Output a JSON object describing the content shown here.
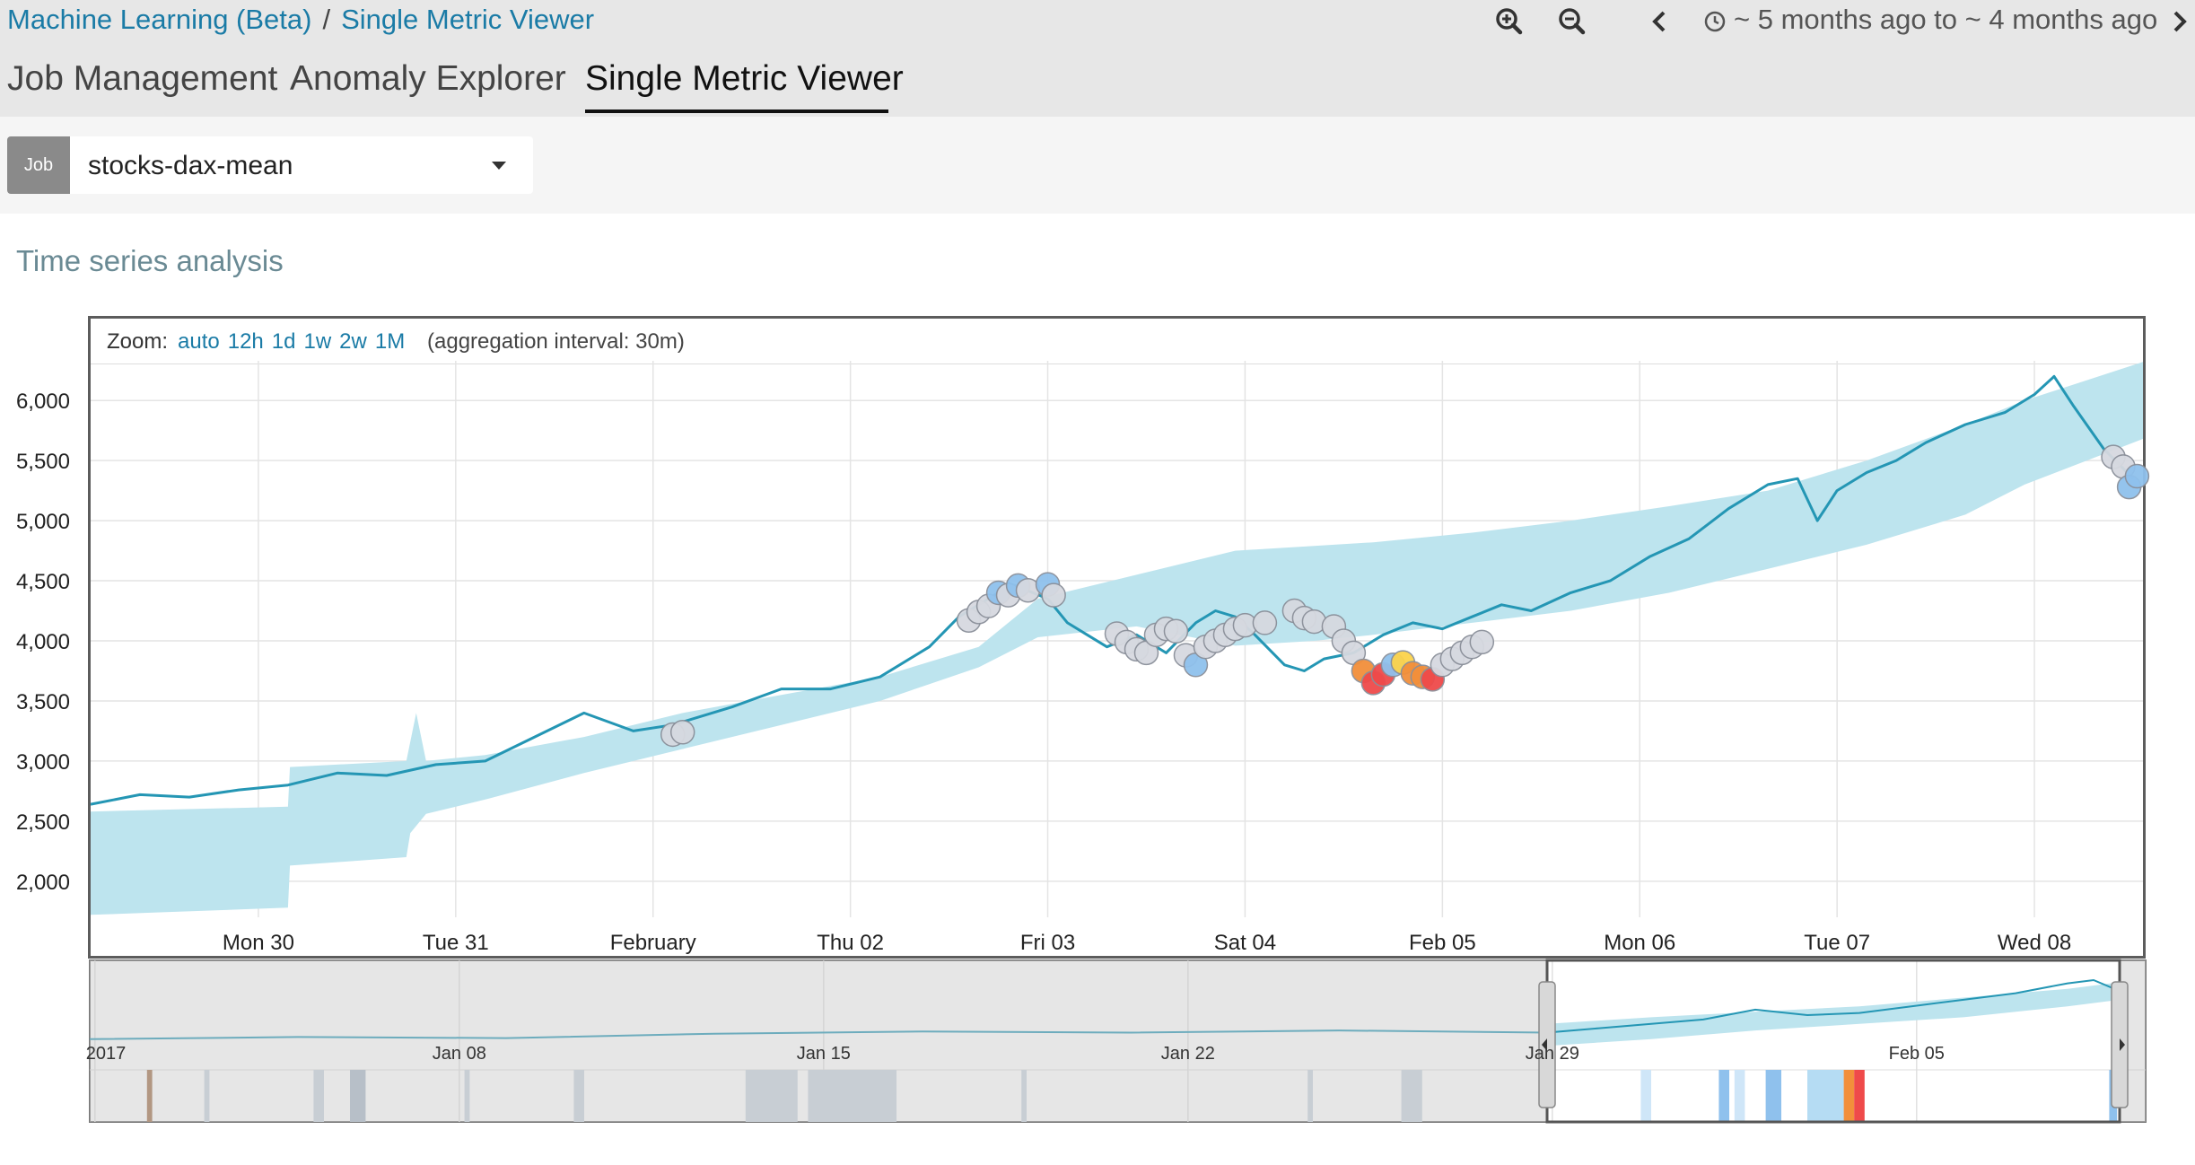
{
  "breadcrumbs": {
    "items": [
      "Machine Learning (Beta)",
      "Single Metric Viewer"
    ],
    "separator": "/"
  },
  "toolbar": {
    "zoom_in_icon": "zoom-in-icon",
    "zoom_out_icon": "zoom-out-icon",
    "prev_icon": "chevron-left-icon",
    "clock_icon": "clock-icon",
    "next_icon": "chevron-right-icon",
    "time_range": "~ 5 months ago to ~ 4 months ago"
  },
  "tabs": [
    {
      "label": "Job Management",
      "active": false
    },
    {
      "label": "Anomaly Explorer",
      "active": false
    },
    {
      "label": "Single Metric Viewer",
      "active": true
    }
  ],
  "job": {
    "label": "Job",
    "selected": "stocks-dax-mean"
  },
  "section_title": "Time series analysis",
  "zoom": {
    "label": "Zoom:",
    "options": [
      "auto",
      "12h",
      "1d",
      "1w",
      "2w",
      "1M"
    ],
    "aggregation": "(aggregation interval: 30m)"
  },
  "colors": {
    "line": "#2496b4",
    "bounds": "#bde4ee",
    "anomaly_low": "#d6d9e0",
    "anomaly_warning": "#8fc1ed",
    "anomaly_minor": "#fcd34b",
    "anomaly_major": "#f28f3b",
    "anomaly_critical": "#ef4a4a",
    "link": "#1a7ba6"
  },
  "chart_data": {
    "type": "line",
    "y_ticks": [
      "6,000",
      "5,500",
      "5,000",
      "4,500",
      "4,000",
      "3,500",
      "3,000",
      "2,500",
      "2,000"
    ],
    "y_tick_values": [
      6000,
      5500,
      5000,
      4500,
      4000,
      3500,
      3000,
      2500,
      2000
    ],
    "ylim": [
      1700,
      6330
    ],
    "x_ticks": [
      "Mon 30",
      "Tue 31",
      "February",
      "Thu 02",
      "Fri 03",
      "Sat 04",
      "Feb 05",
      "Mon 06",
      "Tue 07",
      "Wed 08"
    ],
    "x_tick_values": [
      0.85,
      1.85,
      2.85,
      3.85,
      4.85,
      5.85,
      6.85,
      7.85,
      8.85,
      9.85
    ],
    "xlim": [
      0,
      10.4
    ],
    "series": [
      {
        "role": "actual",
        "x": [
          0,
          0.25,
          0.5,
          0.75,
          1.0,
          1.25,
          1.5,
          1.75,
          2.0,
          2.25,
          2.5,
          2.75,
          2.95,
          3.25,
          3.5,
          3.75,
          4.0,
          4.25,
          4.4,
          4.5,
          4.6,
          4.65,
          4.7,
          4.85,
          4.95,
          5.05,
          5.15,
          5.3,
          5.45,
          5.6,
          5.7,
          5.8,
          5.9,
          6.05,
          6.15,
          6.25,
          6.4,
          6.55,
          6.7,
          6.85,
          7.0,
          7.15,
          7.3,
          7.5,
          7.7,
          7.9,
          8.1,
          8.3,
          8.5,
          8.65,
          8.75,
          8.85,
          9.0,
          9.15,
          9.3,
          9.5,
          9.7,
          9.85,
          9.95,
          10.05,
          10.2,
          10.35
        ],
        "y": [
          2640,
          2720,
          2700,
          2760,
          2800,
          2900,
          2880,
          2970,
          3000,
          3200,
          3400,
          3250,
          3300,
          3450,
          3600,
          3600,
          3700,
          3950,
          4200,
          4300,
          4400,
          4480,
          4450,
          4350,
          4150,
          4050,
          3950,
          4050,
          3900,
          4150,
          4250,
          4200,
          4050,
          3800,
          3750,
          3850,
          3900,
          4050,
          4150,
          4100,
          4200,
          4300,
          4250,
          4400,
          4500,
          4700,
          4850,
          5100,
          5300,
          5350,
          5000,
          5250,
          5400,
          5500,
          5650,
          5800,
          5900,
          6050,
          6200,
          5950,
          5600,
          5350
        ]
      },
      {
        "role": "upper_bound",
        "x": [
          0,
          1.0,
          1.01,
          1.6,
          1.65,
          1.7,
          2.0,
          2.5,
          3.0,
          3.5,
          4.0,
          4.5,
          4.8,
          5.3,
          5.8,
          6.2,
          6.5,
          7.0,
          7.5,
          8.0,
          8.5,
          9.0,
          9.5,
          9.8,
          10.4
        ],
        "y": [
          2580,
          2620,
          2950,
          3000,
          3400,
          3000,
          3050,
          3200,
          3400,
          3550,
          3700,
          3950,
          4350,
          4550,
          4750,
          4790,
          4820,
          4900,
          5000,
          5120,
          5250,
          5500,
          5800,
          6000,
          6320
        ]
      },
      {
        "role": "lower_bound",
        "x": [
          0,
          1.0,
          1.01,
          1.6,
          1.62,
          1.7,
          2.0,
          2.5,
          3.0,
          3.5,
          4.0,
          4.5,
          4.8,
          5.3,
          5.8,
          6.2,
          6.5,
          7.0,
          7.5,
          8.0,
          8.5,
          9.0,
          9.5,
          9.8,
          10.4
        ],
        "y": [
          1720,
          1780,
          2130,
          2200,
          2400,
          2560,
          2680,
          2900,
          3100,
          3300,
          3500,
          3780,
          4030,
          4120,
          3960,
          4000,
          4050,
          4150,
          4250,
          4400,
          4600,
          4800,
          5050,
          5300,
          5680
        ]
      }
    ],
    "anomalies": [
      {
        "x": 2.95,
        "y": 3220,
        "severity": "low"
      },
      {
        "x": 3.0,
        "y": 3240,
        "severity": "low"
      },
      {
        "x": 4.45,
        "y": 4170,
        "severity": "low"
      },
      {
        "x": 4.5,
        "y": 4240,
        "severity": "low"
      },
      {
        "x": 4.55,
        "y": 4290,
        "severity": "low"
      },
      {
        "x": 4.6,
        "y": 4400,
        "severity": "warning"
      },
      {
        "x": 4.65,
        "y": 4380,
        "severity": "low"
      },
      {
        "x": 4.7,
        "y": 4460,
        "severity": "warning"
      },
      {
        "x": 4.75,
        "y": 4420,
        "severity": "low"
      },
      {
        "x": 4.85,
        "y": 4470,
        "severity": "warning"
      },
      {
        "x": 4.88,
        "y": 4380,
        "severity": "low"
      },
      {
        "x": 5.2,
        "y": 4060,
        "severity": "low"
      },
      {
        "x": 5.25,
        "y": 3990,
        "severity": "low"
      },
      {
        "x": 5.3,
        "y": 3930,
        "severity": "low"
      },
      {
        "x": 5.35,
        "y": 3900,
        "severity": "low"
      },
      {
        "x": 5.4,
        "y": 4050,
        "severity": "low"
      },
      {
        "x": 5.45,
        "y": 4100,
        "severity": "low"
      },
      {
        "x": 5.5,
        "y": 4080,
        "severity": "low"
      },
      {
        "x": 5.55,
        "y": 3880,
        "severity": "low"
      },
      {
        "x": 5.6,
        "y": 3800,
        "severity": "warning"
      },
      {
        "x": 5.65,
        "y": 3950,
        "severity": "low"
      },
      {
        "x": 5.7,
        "y": 4000,
        "severity": "low"
      },
      {
        "x": 5.75,
        "y": 4050,
        "severity": "low"
      },
      {
        "x": 5.8,
        "y": 4100,
        "severity": "low"
      },
      {
        "x": 5.85,
        "y": 4130,
        "severity": "low"
      },
      {
        "x": 5.95,
        "y": 4150,
        "severity": "low"
      },
      {
        "x": 6.1,
        "y": 4250,
        "severity": "low"
      },
      {
        "x": 6.15,
        "y": 4190,
        "severity": "low"
      },
      {
        "x": 6.2,
        "y": 4160,
        "severity": "low"
      },
      {
        "x": 6.3,
        "y": 4120,
        "severity": "low"
      },
      {
        "x": 6.35,
        "y": 4000,
        "severity": "low"
      },
      {
        "x": 6.4,
        "y": 3900,
        "severity": "low"
      },
      {
        "x": 6.45,
        "y": 3750,
        "severity": "major"
      },
      {
        "x": 6.5,
        "y": 3650,
        "severity": "critical"
      },
      {
        "x": 6.55,
        "y": 3720,
        "severity": "critical"
      },
      {
        "x": 6.6,
        "y": 3800,
        "severity": "warning"
      },
      {
        "x": 6.65,
        "y": 3820,
        "severity": "minor"
      },
      {
        "x": 6.7,
        "y": 3730,
        "severity": "major"
      },
      {
        "x": 6.75,
        "y": 3700,
        "severity": "major"
      },
      {
        "x": 6.8,
        "y": 3680,
        "severity": "critical"
      },
      {
        "x": 6.85,
        "y": 3800,
        "severity": "low"
      },
      {
        "x": 6.9,
        "y": 3850,
        "severity": "low"
      },
      {
        "x": 6.95,
        "y": 3900,
        "severity": "low"
      },
      {
        "x": 7.0,
        "y": 3950,
        "severity": "low"
      },
      {
        "x": 7.05,
        "y": 3990,
        "severity": "low"
      },
      {
        "x": 10.25,
        "y": 5530,
        "severity": "low"
      },
      {
        "x": 10.3,
        "y": 5450,
        "severity": "low"
      },
      {
        "x": 10.33,
        "y": 5280,
        "severity": "warning"
      },
      {
        "x": 10.37,
        "y": 5370,
        "severity": "warning"
      }
    ]
  },
  "context_chart": {
    "x_ticks": [
      "2017",
      "Jan 08",
      "Jan 15",
      "Jan 22",
      "Jan 29",
      "Feb 05"
    ],
    "x_tick_values": [
      0.1,
      7.1,
      14.1,
      21.1,
      28.1,
      35.1
    ],
    "xlim": [
      0,
      39.5
    ],
    "selection": [
      28.0,
      39.0
    ],
    "line": {
      "x": [
        0,
        4,
        8,
        12,
        16,
        20,
        24,
        28,
        29,
        30,
        31,
        32,
        33,
        34,
        35,
        36,
        37,
        38,
        38.5,
        39
      ],
      "y": [
        0.28,
        0.3,
        0.29,
        0.33,
        0.35,
        0.34,
        0.36,
        0.34,
        0.38,
        0.42,
        0.46,
        0.55,
        0.5,
        0.52,
        0.58,
        0.64,
        0.7,
        0.79,
        0.82,
        0.72
      ]
    },
    "band": {
      "x": [
        28,
        30,
        32,
        34,
        36,
        38,
        39
      ],
      "upper": [
        0.42,
        0.48,
        0.53,
        0.58,
        0.66,
        0.74,
        0.8
      ],
      "lower": [
        0.22,
        0.28,
        0.36,
        0.42,
        0.48,
        0.58,
        0.64
      ]
    },
    "swimlane": [
      {
        "x": 1.1,
        "w": 0.1,
        "color": "#a0704a"
      },
      {
        "x": 2.2,
        "w": 0.1,
        "color": "#c8d4df"
      },
      {
        "x": 4.3,
        "w": 0.2,
        "color": "#c8d4df"
      },
      {
        "x": 5.0,
        "w": 0.3,
        "color": "#aab8c8"
      },
      {
        "x": 7.2,
        "w": 0.1,
        "color": "#c8d4df"
      },
      {
        "x": 9.3,
        "w": 0.2,
        "color": "#c8d4df"
      },
      {
        "x": 12.6,
        "w": 1.0,
        "color": "#c8d4df"
      },
      {
        "x": 13.8,
        "w": 1.7,
        "color": "#c8d4df"
      },
      {
        "x": 17.9,
        "w": 0.1,
        "color": "#c8d4df"
      },
      {
        "x": 23.4,
        "w": 0.1,
        "color": "#c8d4df"
      },
      {
        "x": 25.2,
        "w": 0.4,
        "color": "#c8d4df"
      },
      {
        "x": 29.8,
        "w": 0.2,
        "color": "#cfe6f8"
      },
      {
        "x": 31.3,
        "w": 0.2,
        "color": "#8fc1ed"
      },
      {
        "x": 31.6,
        "w": 0.2,
        "color": "#cfe6f8"
      },
      {
        "x": 32.2,
        "w": 0.3,
        "color": "#8fc1ed"
      },
      {
        "x": 33.0,
        "w": 0.7,
        "color": "#b5dcf3"
      },
      {
        "x": 33.7,
        "w": 0.2,
        "color": "#f28f3b"
      },
      {
        "x": 33.9,
        "w": 0.2,
        "color": "#ef4a4a"
      },
      {
        "x": 38.8,
        "w": 0.15,
        "color": "#8fc1ed"
      }
    ]
  }
}
